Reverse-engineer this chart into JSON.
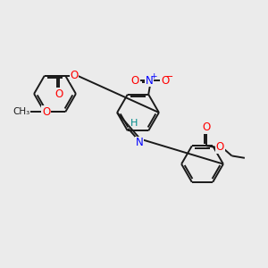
{
  "bg_color": "#ebebeb",
  "bond_color": "#1a1a1a",
  "bond_width": 1.4,
  "atom_colors": {
    "O": "#ff0000",
    "N": "#0000ff",
    "H_imine": "#008b8b",
    "C": "#1a1a1a"
  },
  "font_size_atom": 8.5,
  "scale": 1.0
}
